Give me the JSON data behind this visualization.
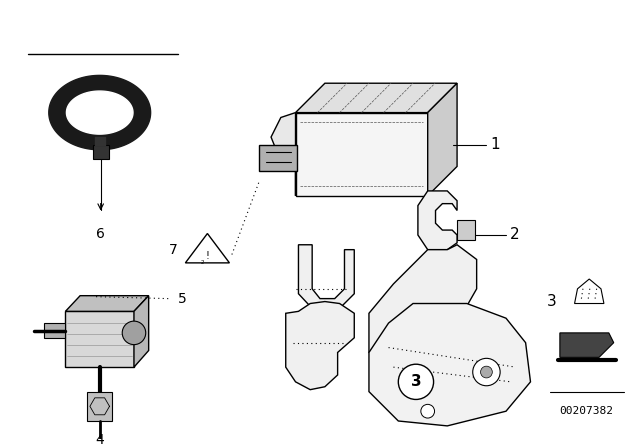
{
  "bg_color": "#ffffff",
  "fig_width": 6.4,
  "fig_height": 4.48,
  "dpi": 100,
  "part_number_text": "00207382",
  "line_color": "#000000",
  "text_color": "#000000"
}
